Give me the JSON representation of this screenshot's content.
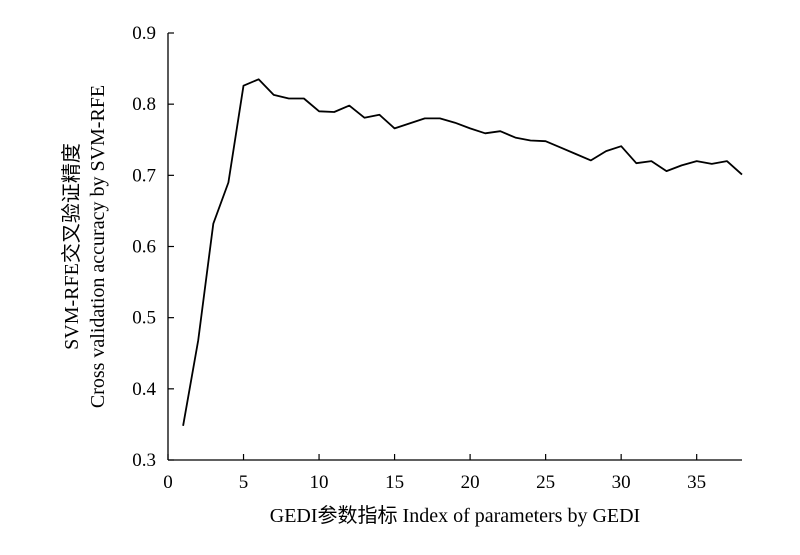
{
  "chart_data": {
    "type": "line",
    "title": "",
    "xlabel": "GEDI参数指标  Index of parameters by GEDI",
    "ylabel_lines": [
      "SVM-RFE交叉验证精度",
      "Cross validation accuracy by  SVM-RFE"
    ],
    "xlim": [
      0,
      38
    ],
    "ylim": [
      0.3,
      0.9
    ],
    "xticks": [
      0,
      5,
      10,
      15,
      20,
      25,
      30,
      35
    ],
    "yticks": [
      "0.3",
      "0.4",
      "0.5",
      "0.6",
      "0.7",
      "0.8",
      "0.9"
    ],
    "grid": false,
    "line_color": "#000000",
    "series": [
      {
        "x": [
          1,
          2,
          3,
          4,
          5,
          6,
          7,
          8,
          9,
          10,
          11,
          12,
          13,
          14,
          15,
          16,
          17,
          18,
          19,
          20,
          21,
          22,
          23,
          24,
          25,
          26,
          27,
          28,
          29,
          30,
          31,
          32,
          33,
          34,
          35,
          36,
          37,
          38
        ],
        "y": [
          0.348,
          0.468,
          0.632,
          0.69,
          0.826,
          0.835,
          0.813,
          0.808,
          0.808,
          0.79,
          0.789,
          0.798,
          0.781,
          0.785,
          0.766,
          0.773,
          0.78,
          0.78,
          0.774,
          0.766,
          0.759,
          0.762,
          0.753,
          0.749,
          0.748,
          0.739,
          0.73,
          0.721,
          0.734,
          0.741,
          0.717,
          0.72,
          0.706,
          0.714,
          0.72,
          0.716,
          0.72,
          0.701
        ]
      }
    ]
  }
}
